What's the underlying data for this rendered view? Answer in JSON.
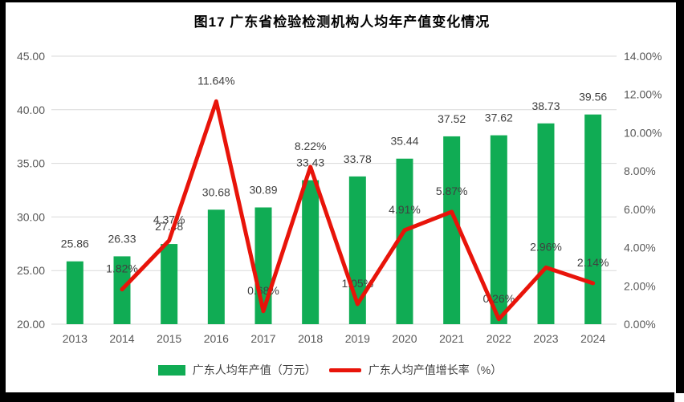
{
  "chart_data": {
    "type": "bar+line",
    "title": "图17  广东省检验检测机构人均年产值变化情况",
    "categories": [
      "2013",
      "2014",
      "2015",
      "2016",
      "2017",
      "2018",
      "2019",
      "2020",
      "2021",
      "2022",
      "2023",
      "2024"
    ],
    "series": [
      {
        "name": "广东人均年产值（万元）",
        "type": "bar",
        "axis": "left",
        "color": "#10ac54",
        "values": [
          25.86,
          26.33,
          27.48,
          30.68,
          30.89,
          33.43,
          33.78,
          35.44,
          37.52,
          37.62,
          38.73,
          39.56
        ],
        "labels": [
          "25.86",
          "26.33",
          "27.48",
          "30.68",
          "30.89",
          "33.43",
          "33.78",
          "35.44",
          "37.52",
          "37.62",
          "38.73",
          "39.56"
        ]
      },
      {
        "name": "广东人均产值增长率（%）",
        "type": "line",
        "axis": "right",
        "color": "#e8140a",
        "values": [
          null,
          1.82,
          4.37,
          11.64,
          0.68,
          8.22,
          1.05,
          4.91,
          5.87,
          0.26,
          2.96,
          2.14
        ],
        "labels": [
          null,
          "1.82%",
          "4.37%",
          "11.64%",
          "0.68%",
          "8.22%",
          "1.05%",
          "4.91%",
          "5.87%",
          "0.26%",
          "2.96%",
          "2.14%"
        ]
      }
    ],
    "left_axis": {
      "min": 20,
      "max": 45,
      "step": 5,
      "ticks": [
        "20.00",
        "25.00",
        "30.00",
        "35.00",
        "40.00",
        "45.00"
      ]
    },
    "right_axis": {
      "min": 0,
      "max": 14,
      "step": 2,
      "ticks": [
        "0.00%",
        "2.00%",
        "4.00%",
        "6.00%",
        "8.00%",
        "10.00%",
        "12.00%",
        "14.00%"
      ]
    },
    "grid": true,
    "legend_position": "bottom",
    "colors": {
      "grid": "#d9d9d9",
      "axis_text": "#595959",
      "data_label": "#404040",
      "title": "#000000",
      "background": "#ffffff",
      "scan_border": "#000000"
    }
  }
}
